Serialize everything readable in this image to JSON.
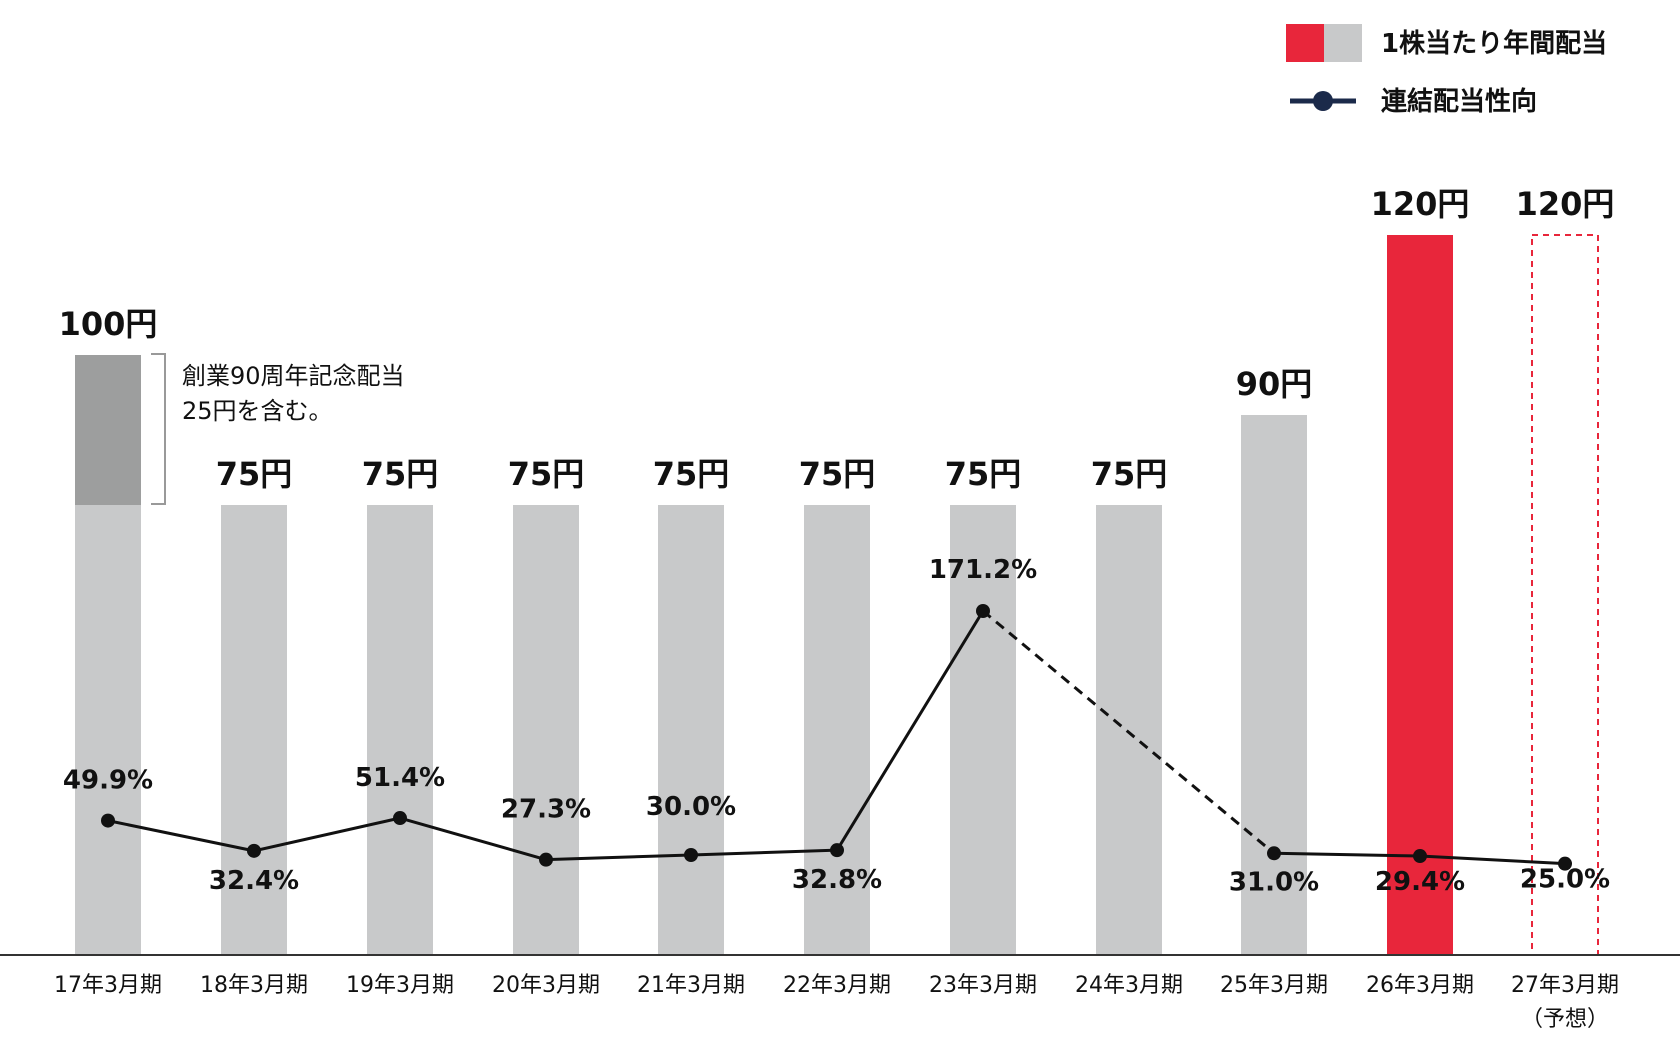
{
  "chart_data": {
    "type": "bar",
    "categories": [
      "17年3月期",
      "18年3月期",
      "19年3月期",
      "20年3月期",
      "21年3月期",
      "22年3月期",
      "23年3月期",
      "24年3月期",
      "25年3月期",
      "26年3月期",
      "27年3月期"
    ],
    "forecast_note": "（予想）",
    "series": [
      {
        "name": "1株当たり年間配当",
        "type": "bar",
        "values": [
          100,
          75,
          75,
          75,
          75,
          75,
          75,
          75,
          90,
          120,
          120
        ],
        "labels": [
          "100円",
          "75円",
          "75円",
          "75円",
          "75円",
          "75円",
          "75円",
          "75円",
          "90円",
          "120円",
          "120円"
        ],
        "highlight_index": 9,
        "forecast_index": 10
      },
      {
        "name": "連結配当性向",
        "type": "line",
        "values": [
          49.9,
          32.4,
          51.4,
          27.3,
          30.0,
          32.8,
          171.2,
          null,
          31.0,
          29.4,
          25.0
        ],
        "labels": [
          "49.9%",
          "32.4%",
          "51.4%",
          "27.3%",
          "30.0%",
          "32.8%",
          "171.2%",
          "",
          "31.0%",
          "29.4%",
          "25.0%"
        ],
        "dashed_segment": [
          6,
          8
        ]
      }
    ],
    "annotation": {
      "text_lines": [
        "創業90周年記念配当",
        "25円を含む。"
      ],
      "commemorative_amount": 25
    },
    "colors": {
      "bar": "#c8c9ca",
      "bar_commemorative": "#9d9e9e",
      "highlight": "#e8263b",
      "line": "#111111",
      "legend_line": "#1b2a4a"
    },
    "legend_position": "top-right",
    "grid": false
  }
}
